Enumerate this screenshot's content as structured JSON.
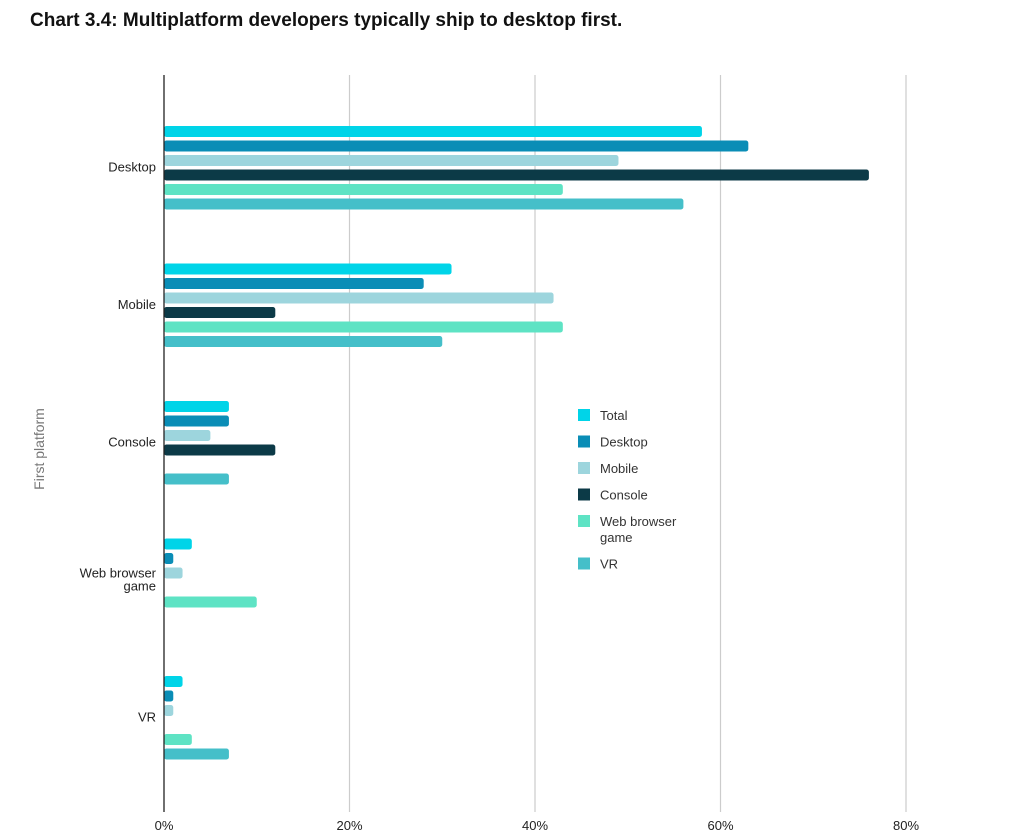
{
  "chart_data": {
    "type": "bar",
    "orientation": "horizontal",
    "title": "Chart 3.4: Multiplatform developers typically ship to desktop first.",
    "xlabel": "",
    "ylabel": "First platform",
    "xlim": [
      0,
      80
    ],
    "x_ticks": [
      "0%",
      "20%",
      "40%",
      "60%",
      "80%"
    ],
    "x_tick_values": [
      0,
      20,
      40,
      60,
      80
    ],
    "grid": "vertical",
    "legend_position": "right",
    "categories": [
      [
        "Desktop"
      ],
      [
        "Mobile"
      ],
      [
        "Console"
      ],
      [
        "Web browser",
        "game"
      ],
      [
        "VR"
      ]
    ],
    "series": [
      {
        "name": "Total",
        "color": "#00d4e8",
        "values": [
          58,
          31,
          7,
          3,
          2
        ]
      },
      {
        "name": "Desktop",
        "color": "#0a8db6",
        "values": [
          63,
          28,
          7,
          1,
          1
        ]
      },
      {
        "name": "Mobile",
        "color": "#9dd5dd",
        "values": [
          49,
          42,
          5,
          2,
          1
        ]
      },
      {
        "name": "Console",
        "color": "#0c3a47",
        "values": [
          76,
          12,
          12,
          0,
          0
        ]
      },
      {
        "name": "Web browser game",
        "legend_lines": [
          "Web browser",
          "game"
        ],
        "color": "#5ee3c4",
        "values": [
          43,
          43,
          0,
          10,
          3
        ]
      },
      {
        "name": "VR",
        "color": "#45bfc9",
        "values": [
          56,
          30,
          7,
          0,
          7
        ]
      }
    ]
  }
}
